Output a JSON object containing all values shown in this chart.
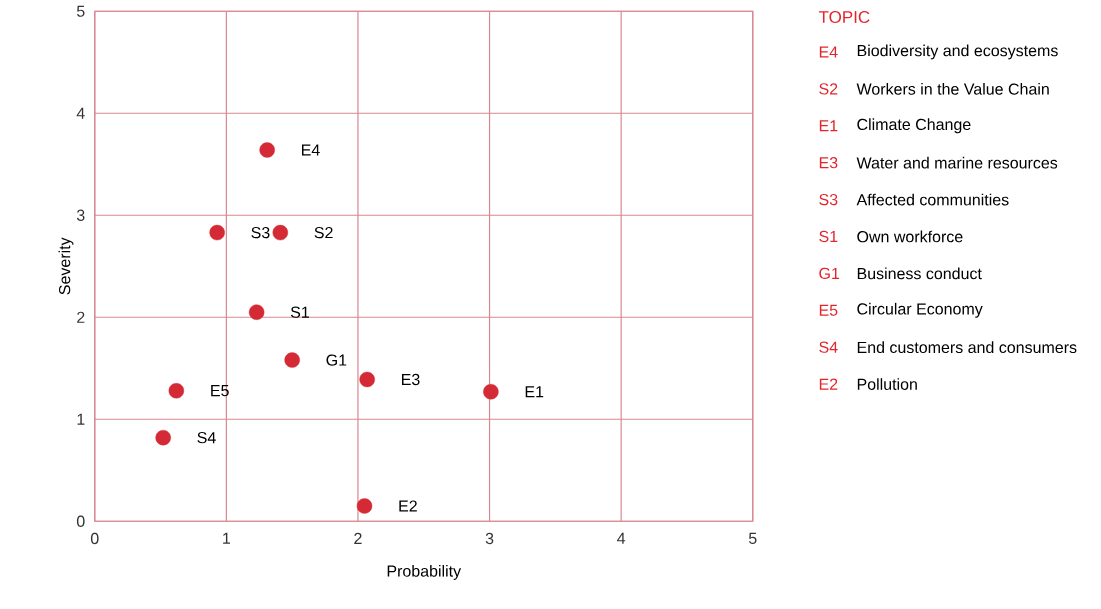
{
  "chart_data": [
    {
      "type": "scatter",
      "xlabel": "Probability",
      "ylabel": "Severity",
      "xlim": [
        0,
        5
      ],
      "ylim": [
        0,
        5
      ],
      "xticks": [
        0,
        1,
        2,
        3,
        4,
        5
      ],
      "yticks": [
        0,
        1,
        2,
        3,
        4,
        5
      ],
      "grid": true,
      "marker": "circle",
      "series": [
        {
          "color": "#d42a35",
          "x": [
            1.31,
            0.93,
            1.41,
            1.23,
            1.5,
            2.07,
            3.01,
            0.62,
            0.52,
            2.05
          ],
          "values": [
            3.64,
            2.83,
            2.83,
            2.05,
            1.58,
            1.39,
            1.27,
            1.28,
            0.82,
            0.15
          ]
        }
      ],
      "annotations": [
        {
          "text": "E4",
          "x": 1.31,
          "y": 3.64
        },
        {
          "text": "S3",
          "x": 0.93,
          "y": 2.83
        },
        {
          "text": "S2",
          "x": 1.41,
          "y": 2.83
        },
        {
          "text": "S1",
          "x": 1.23,
          "y": 2.05
        },
        {
          "text": "G1",
          "x": 1.5,
          "y": 1.58
        },
        {
          "text": "E3",
          "x": 2.07,
          "y": 1.39
        },
        {
          "text": "E1",
          "x": 3.01,
          "y": 1.27
        },
        {
          "text": "E5",
          "x": 0.62,
          "y": 1.28
        },
        {
          "text": "S4",
          "x": 0.52,
          "y": 0.82
        },
        {
          "text": "E2",
          "x": 2.05,
          "y": 0.15
        }
      ]
    },
    {
      "type": "other",
      "title": "TOPIC",
      "categories": [
        "E4",
        "S2",
        "E1",
        "E3",
        "S3",
        "S1",
        "G1",
        "E5",
        "S4",
        "E2"
      ],
      "annotations": [
        "Biodiversity and ecosystems",
        "Workers in the Value Chain",
        "Climate Change",
        "Water and marine resources",
        "Affected communities",
        "Own workforce",
        "Business conduct",
        "Circular Economy",
        "End customers and consumers",
        "Pollution"
      ]
    }
  ]
}
